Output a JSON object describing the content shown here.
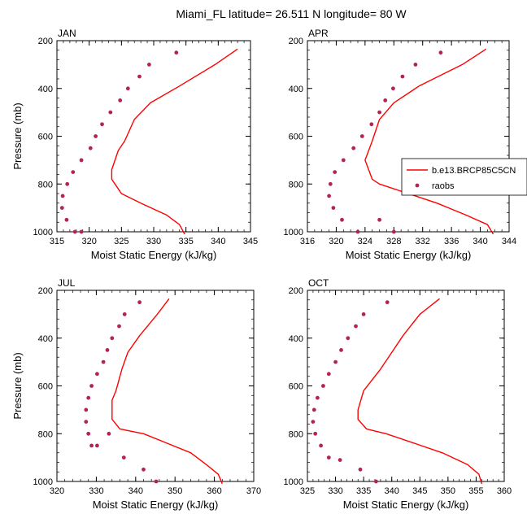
{
  "title": "Miami_FL  latitude= 26.511 N longitude= 80 W",
  "colors": {
    "model": "#ff0000",
    "obs": "#b3254f",
    "axis": "#000000"
  },
  "legend": {
    "model_label": "b.e13.BRCP85C5CN",
    "obs_label": "raobs",
    "placement": "right, inside APR panel"
  },
  "chart_data": [
    {
      "type": "line",
      "panel": "JAN",
      "xlabel": "Moist Static Energy (kJ/kg)",
      "ylabel": "Pressure (mb)",
      "xlim": [
        315,
        345
      ],
      "ylim": [
        1000,
        200
      ],
      "y_reversed": true,
      "xticks": [
        315,
        320,
        325,
        330,
        335,
        340,
        345
      ],
      "yticks": [
        200,
        400,
        600,
        800,
        1000
      ],
      "xminor": 1,
      "yminor": 40,
      "series": [
        {
          "name": "b.e13.BRCP85C5CN",
          "kind": "line",
          "x": [
            343.0,
            339.5,
            334.0,
            329.5,
            327.0,
            325.5,
            324.5,
            324.0,
            323.5,
            323.5,
            324.0,
            325.0,
            328.0,
            332.0,
            334.0,
            334.8
          ],
          "y": [
            235,
            300,
            390,
            460,
            530,
            620,
            660,
            700,
            740,
            780,
            800,
            840,
            880,
            930,
            970,
            1010
          ]
        },
        {
          "name": "raobs",
          "kind": "scatter",
          "x": [
            333.5,
            329.3,
            327.8,
            326.0,
            324.8,
            323.3,
            322.0,
            321.0,
            320.2,
            318.8,
            317.5,
            316.6,
            315.9,
            315.8,
            316.5,
            317.8,
            318.8
          ],
          "y": [
            250,
            300,
            350,
            400,
            450,
            500,
            550,
            600,
            650,
            700,
            750,
            800,
            850,
            900,
            950,
            1000,
            1000
          ]
        }
      ]
    },
    {
      "type": "line",
      "panel": "APR",
      "xlabel": "Moist Static Energy (kJ/kg)",
      "ylabel": "",
      "xlim": [
        316,
        344
      ],
      "ylim": [
        1000,
        200
      ],
      "y_reversed": true,
      "xticks": [
        316,
        320,
        324,
        328,
        332,
        336,
        340,
        344
      ],
      "yticks": [
        200,
        400,
        600,
        800,
        1000
      ],
      "xminor": 1,
      "yminor": 40,
      "series": [
        {
          "name": "b.e13.BRCP85C5CN",
          "kind": "line",
          "x": [
            340.8,
            337.5,
            331.5,
            328.0,
            326.0,
            325.0,
            324.5,
            324.0,
            324.5,
            325.0,
            326.0,
            330.0,
            334.0,
            338.0,
            341.0,
            341.8
          ],
          "y": [
            235,
            300,
            390,
            460,
            530,
            620,
            660,
            700,
            740,
            780,
            800,
            840,
            880,
            930,
            970,
            1010
          ]
        },
        {
          "name": "raobs",
          "kind": "scatter",
          "x": [
            334.5,
            331.0,
            329.2,
            327.9,
            326.8,
            326.0,
            324.9,
            323.6,
            322.4,
            321.0,
            319.8,
            319.2,
            319.0,
            319.6,
            320.8,
            323.0,
            326.0,
            328.0
          ],
          "y": [
            250,
            300,
            350,
            400,
            450,
            500,
            550,
            600,
            650,
            700,
            750,
            800,
            850,
            900,
            950,
            1000,
            950,
            1000
          ]
        }
      ]
    },
    {
      "type": "line",
      "panel": "JUL",
      "xlabel": "Moist Static Energy (kJ/kg)",
      "ylabel": "Pressure (mb)",
      "xlim": [
        320,
        370
      ],
      "ylim": [
        1000,
        200
      ],
      "y_reversed": true,
      "xticks": [
        320,
        330,
        340,
        350,
        360,
        370
      ],
      "yticks": [
        200,
        400,
        600,
        800,
        1000
      ],
      "xminor": 2,
      "yminor": 40,
      "series": [
        {
          "name": "b.e13.BRCP85C5CN",
          "kind": "line",
          "x": [
            348.5,
            345.5,
            341.0,
            338.0,
            336.5,
            335.0,
            334.0,
            334.0,
            334.0,
            336.0,
            342.0,
            348.0,
            354.0,
            358.0,
            361.0,
            362.0
          ],
          "y": [
            235,
            300,
            390,
            460,
            530,
            620,
            660,
            700,
            740,
            780,
            800,
            840,
            880,
            930,
            970,
            1010
          ]
        },
        {
          "name": "raobs",
          "kind": "scatter",
          "x": [
            341.0,
            337.2,
            335.8,
            334.0,
            332.8,
            331.8,
            330.2,
            328.8,
            328.0,
            327.4,
            327.4,
            328.0,
            328.8,
            330.2,
            333.2,
            337.0,
            342.0,
            345.2
          ],
          "y": [
            250,
            300,
            350,
            400,
            450,
            500,
            550,
            600,
            650,
            700,
            750,
            800,
            850,
            850,
            800,
            900,
            950,
            1000
          ]
        }
      ]
    },
    {
      "type": "line",
      "panel": "OCT",
      "xlabel": "Moist Static Energy (kJ/kg)",
      "ylabel": "",
      "xlim": [
        325,
        360
      ],
      "ylim": [
        1000,
        200
      ],
      "y_reversed": true,
      "xticks": [
        325,
        330,
        335,
        340,
        345,
        350,
        355,
        360
      ],
      "yticks": [
        200,
        400,
        600,
        800,
        1000
      ],
      "xminor": 1,
      "yminor": 40,
      "series": [
        {
          "name": "b.e13.BRCP85C5CN",
          "kind": "line",
          "x": [
            348.5,
            345.0,
            342.0,
            340.0,
            338.0,
            335.0,
            334.5,
            334.0,
            334.0,
            335.5,
            339.0,
            344.0,
            349.0,
            353.5,
            355.5,
            356.0
          ],
          "y": [
            235,
            300,
            390,
            460,
            530,
            620,
            660,
            700,
            740,
            780,
            800,
            840,
            880,
            930,
            970,
            1010
          ]
        },
        {
          "name": "raobs",
          "kind": "scatter",
          "x": [
            339.2,
            335.0,
            333.6,
            332.2,
            331.0,
            330.0,
            328.8,
            327.8,
            326.8,
            326.2,
            326.0,
            326.4,
            327.4,
            328.8,
            330.8,
            334.4,
            337.2
          ],
          "y": [
            250,
            300,
            350,
            400,
            450,
            500,
            550,
            600,
            650,
            700,
            750,
            800,
            850,
            900,
            910,
            950,
            1000
          ]
        }
      ]
    }
  ]
}
